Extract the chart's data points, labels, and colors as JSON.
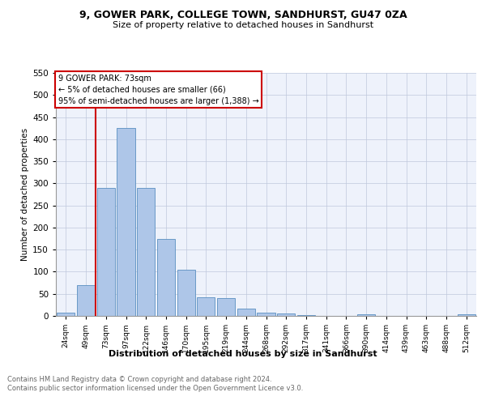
{
  "title1": "9, GOWER PARK, COLLEGE TOWN, SANDHURST, GU47 0ZA",
  "title2": "Size of property relative to detached houses in Sandhurst",
  "xlabel": "Distribution of detached houses by size in Sandhurst",
  "ylabel": "Number of detached properties",
  "categories": [
    "24sqm",
    "49sqm",
    "73sqm",
    "97sqm",
    "122sqm",
    "146sqm",
    "170sqm",
    "195sqm",
    "219sqm",
    "244sqm",
    "268sqm",
    "292sqm",
    "317sqm",
    "341sqm",
    "366sqm",
    "390sqm",
    "414sqm",
    "439sqm",
    "463sqm",
    "488sqm",
    "512sqm"
  ],
  "values": [
    8,
    70,
    290,
    425,
    290,
    175,
    105,
    43,
    40,
    17,
    8,
    5,
    2,
    0,
    0,
    4,
    0,
    0,
    0,
    0,
    4
  ],
  "bar_color": "#aec6e8",
  "bar_edge_color": "#5a8fc0",
  "vline_x_idx": 2,
  "vline_color": "#cc0000",
  "annotation_text": "9 GOWER PARK: 73sqm\n← 5% of detached houses are smaller (66)\n95% of semi-detached houses are larger (1,388) →",
  "annotation_box_color": "#ffffff",
  "annotation_box_edge_color": "#cc0000",
  "ylim": [
    0,
    550
  ],
  "yticks": [
    0,
    50,
    100,
    150,
    200,
    250,
    300,
    350,
    400,
    450,
    500,
    550
  ],
  "footer1": "Contains HM Land Registry data © Crown copyright and database right 2024.",
  "footer2": "Contains public sector information licensed under the Open Government Licence v3.0.",
  "plot_bg_color": "#eef2fb"
}
